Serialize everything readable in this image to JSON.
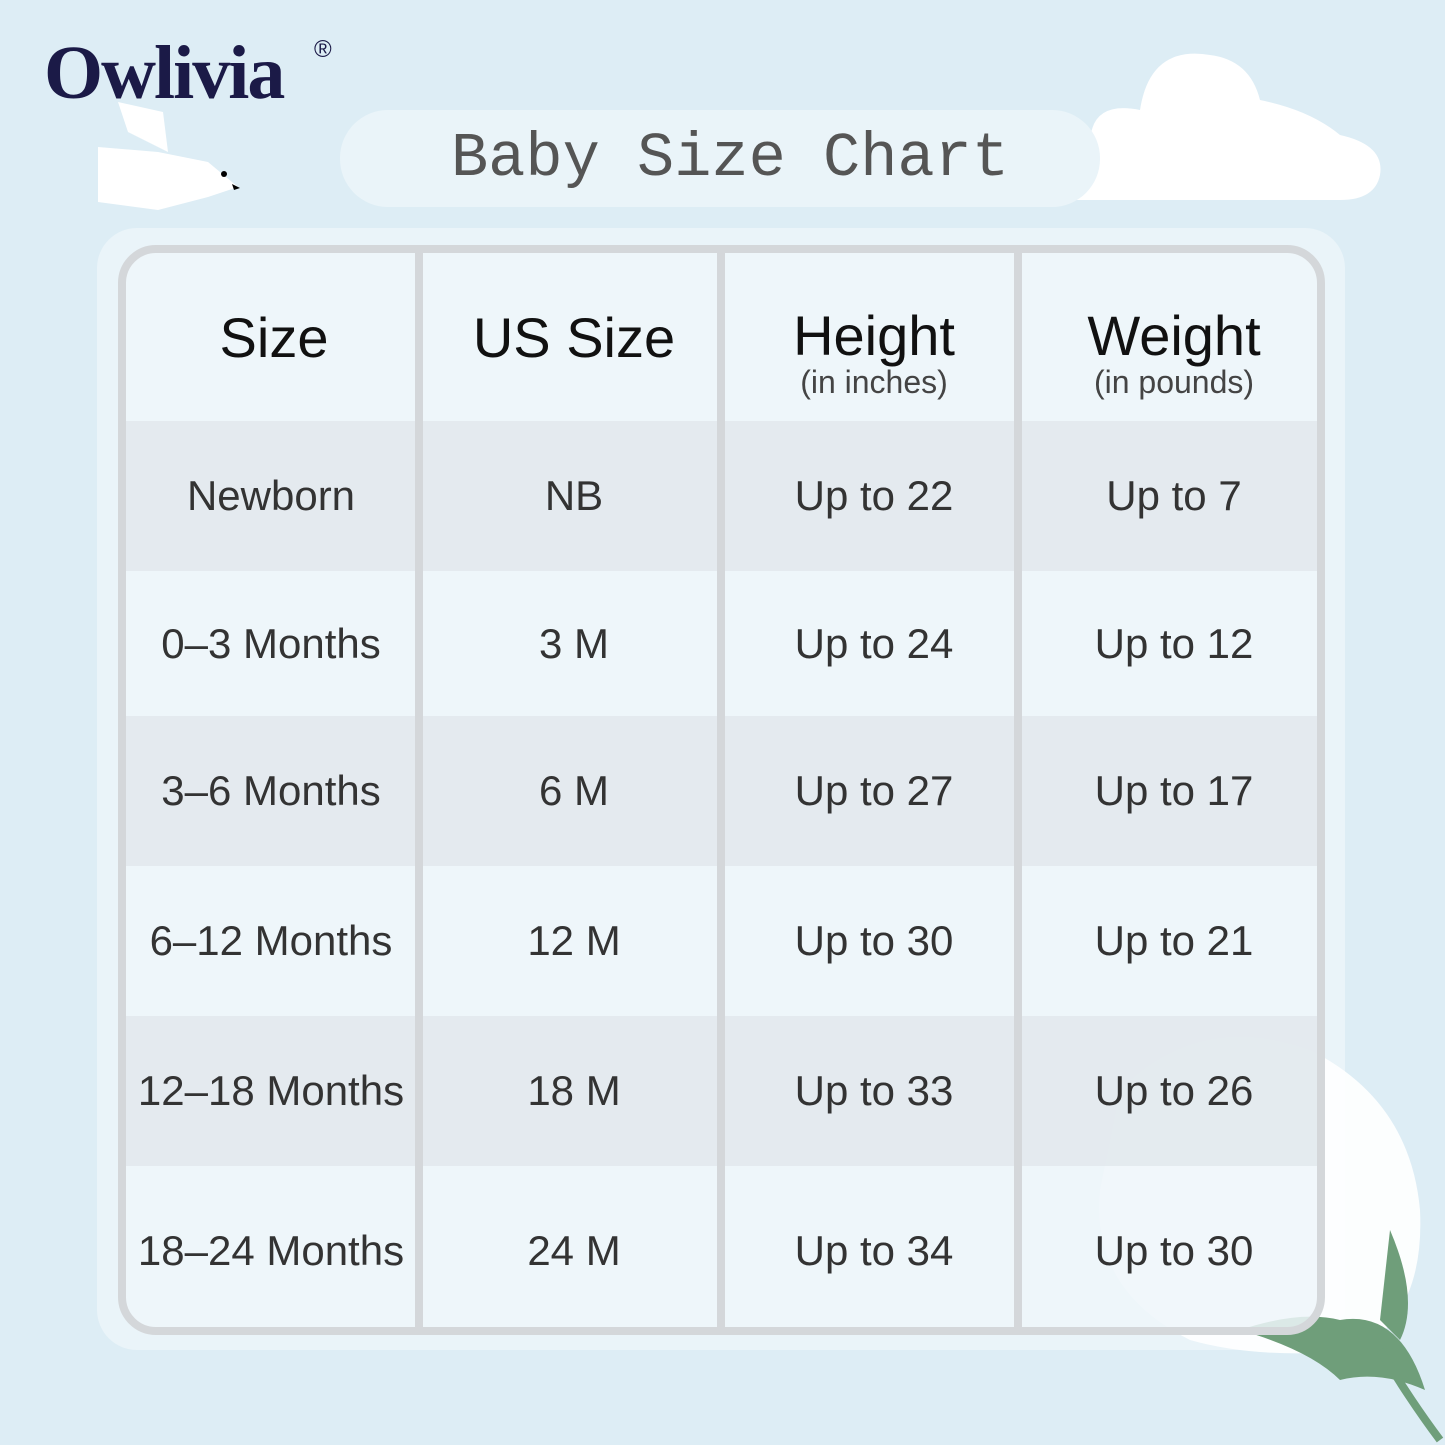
{
  "brand": {
    "name": "Owlivia",
    "registered": "®"
  },
  "title": "Baby Size Chart",
  "table": {
    "headers": [
      {
        "label": "Size",
        "sub": ""
      },
      {
        "label": "US Size",
        "sub": ""
      },
      {
        "label": "Height",
        "sub": "(in inches)"
      },
      {
        "label": "Weight",
        "sub": "(in pounds)"
      }
    ],
    "rows": [
      [
        "Newborn",
        "NB",
        "Up to 22",
        "Up to 7"
      ],
      [
        "0–3 Months",
        "3 M",
        "Up to 24",
        "Up to 12"
      ],
      [
        "3–6 Months",
        "6 M",
        "Up to 27",
        "Up to 17"
      ],
      [
        "6–12 Months",
        "12 M",
        "Up to 30",
        "Up to 21"
      ],
      [
        "12–18 Months",
        "18 M",
        "Up to 33",
        "Up to 26"
      ],
      [
        "18–24 Months",
        "24 M",
        "Up to 34",
        "Up to 30"
      ]
    ]
  },
  "colors": {
    "background": "#ddedf5",
    "brand": "#1b1a47",
    "leaf": "#6f9e7a"
  }
}
